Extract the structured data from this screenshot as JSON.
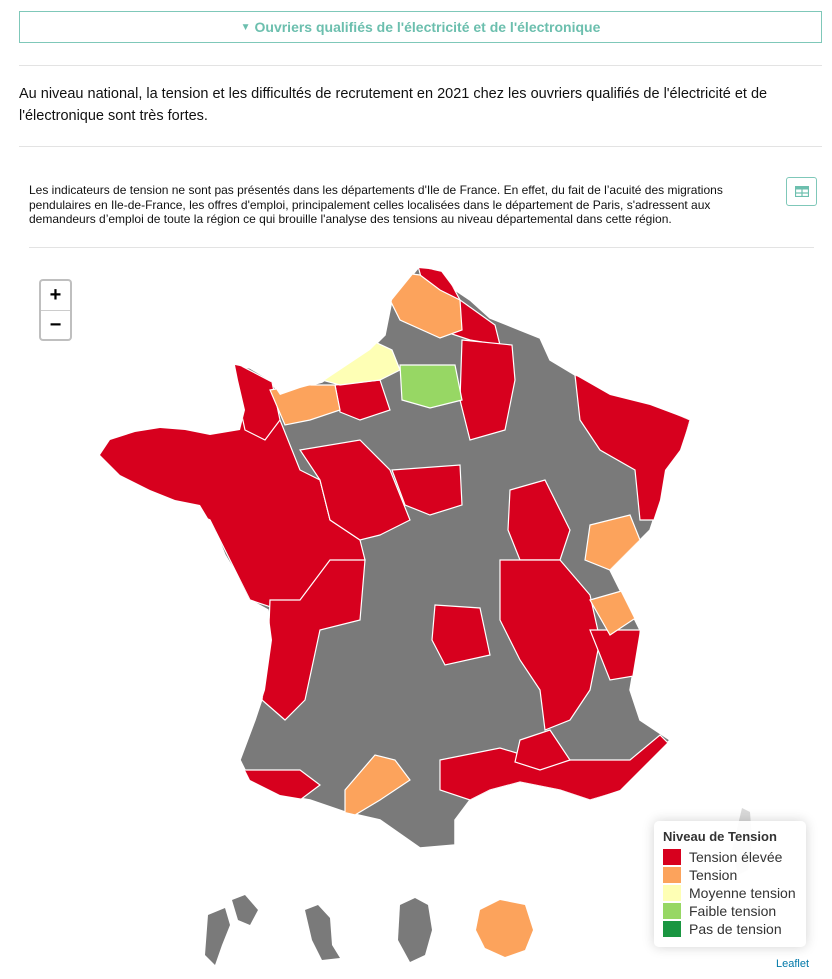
{
  "accordion": {
    "label": "Ouvriers qualifiés de l'électricité et de l'électronique"
  },
  "intro": "Au niveau national, la tension et les difficultés de recrutement en 2021 chez les ouvriers qualifiés de l'électricité et de l'électronique sont très fortes.",
  "note": "Les indicateurs de tension ne sont pas présentés dans les départements d'Ile de France. En effet, du fait de l’acuité des migrations pendulaires en Ile-de-France, les offres d'emploi, principalement celles localisées dans le département de Paris, s'adressent aux demandeurs d’emploi de toute la région ce qui brouille l'analyse des tensions au niveau départemental dans cette région.",
  "table_button": {
    "icon": "table-icon"
  },
  "zoom": {
    "in": "+",
    "out": "−"
  },
  "legend": {
    "title": "Niveau de Tension",
    "items": [
      {
        "label": "Tension élevée",
        "color": "#d7001e"
      },
      {
        "label": "Tension",
        "color": "#fca35c"
      },
      {
        "label": "Moyenne tension",
        "color": "#feffb5"
      },
      {
        "label": "Faible tension",
        "color": "#97d764"
      },
      {
        "label": "Pas de tension",
        "color": "#1a9641"
      }
    ]
  },
  "colors": {
    "no_data": "#7a7a7a",
    "accent": "#6cbfae"
  },
  "attribution": "Leaflet"
}
